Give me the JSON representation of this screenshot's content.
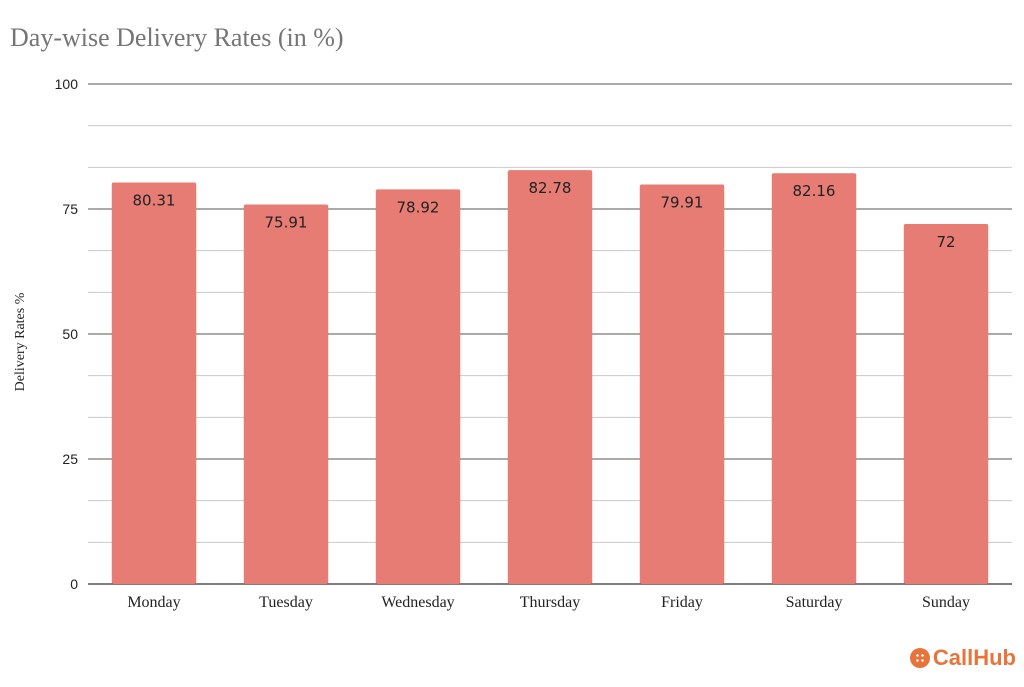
{
  "chart_data": {
    "type": "bar",
    "title": "Day-wise Delivery Rates (in %)",
    "xlabel": "",
    "ylabel": "Delivery Rates %",
    "categories": [
      "Monday",
      "Tuesday",
      "Wednesday",
      "Thursday",
      "Friday",
      "Saturday",
      "Sunday"
    ],
    "values": [
      80.31,
      75.91,
      78.92,
      82.78,
      79.91,
      82.16,
      72
    ],
    "value_labels": [
      "80.31",
      "75.91",
      "78.92",
      "82.78",
      "79.91",
      "82.16",
      "72"
    ],
    "ylim": [
      0,
      100
    ],
    "yticks": [
      0,
      25,
      50,
      75,
      100
    ],
    "grid": true,
    "legend": "none",
    "bar_color": "#E67C73"
  },
  "brand": {
    "name": "CallHub",
    "color": "#E8743B",
    "icon": "chat-bubble-icon"
  }
}
